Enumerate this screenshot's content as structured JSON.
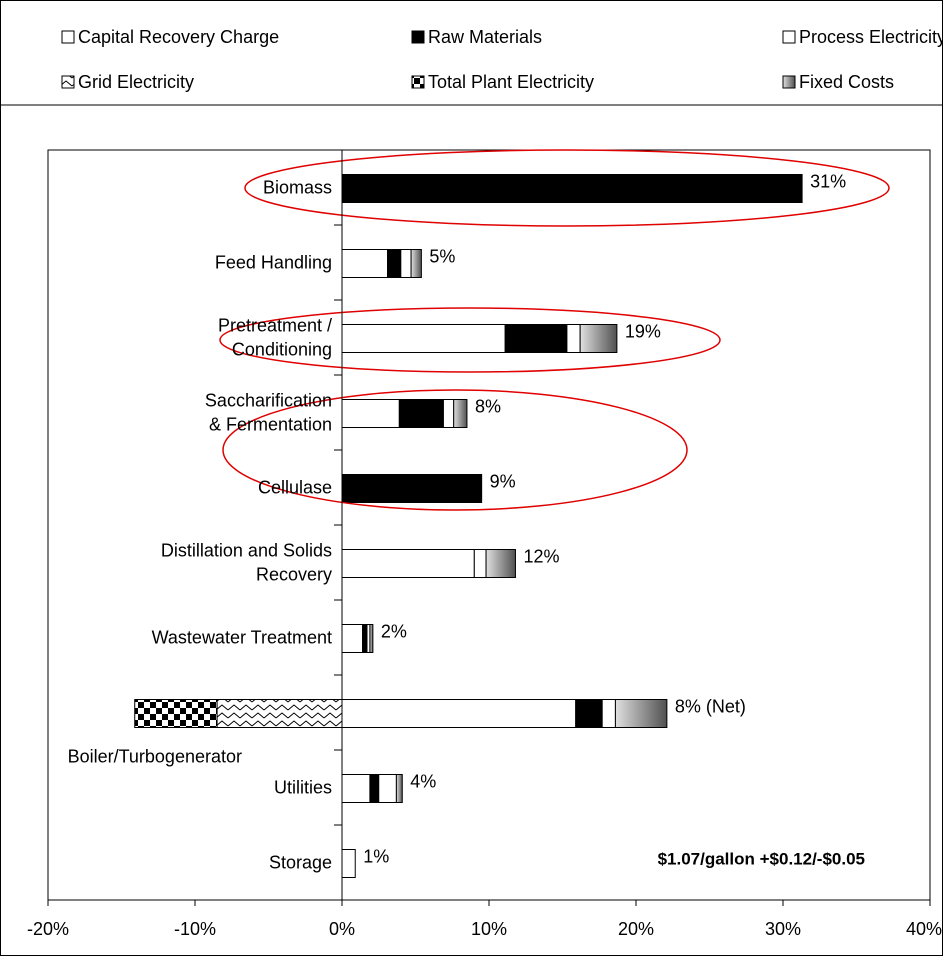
{
  "chart_data": {
    "type": "stacked-hbar",
    "categories": [
      [
        "Biomass"
      ],
      [
        "Feed Handling"
      ],
      [
        "Pretreatment /",
        "Conditioning"
      ],
      [
        "Saccharification",
        "& Fermentation"
      ],
      [
        "Cellulase"
      ],
      [
        "Distillation and Solids",
        "Recovery"
      ],
      [
        "Wastewater Treatment"
      ],
      [
        "Boiler/Turbogenerator"
      ],
      [
        "Utilities"
      ],
      [
        "Storage"
      ]
    ],
    "series": [
      {
        "name": "Capital Recovery Charge",
        "color": "#ffffff",
        "values": [
          0,
          3.1,
          11.1,
          3.9,
          0,
          9.0,
          1.4,
          15.9,
          1.9,
          0.9
        ]
      },
      {
        "name": "Raw Materials",
        "color": "#000000",
        "values": [
          31.3,
          0.9,
          4.2,
          3.0,
          9.5,
          0,
          0.3,
          1.8,
          0.6,
          0
        ]
      },
      {
        "name": "Process Electricity",
        "color": "#ffffff",
        "values": [
          0,
          0.7,
          0.9,
          0.7,
          0,
          0.8,
          0.2,
          0.9,
          1.2,
          0
        ]
      },
      {
        "name": "Grid Electricity",
        "color": "#ffffff",
        "pattern": "zigzag",
        "values": [
          0,
          0,
          0,
          0,
          0,
          0,
          0,
          -8.5,
          0,
          0
        ]
      },
      {
        "name": "Total Plant Electricity",
        "color": "#000000",
        "pattern": "checker",
        "values": [
          0,
          0,
          0,
          0,
          0,
          0,
          0,
          -5.6,
          0,
          0
        ]
      },
      {
        "name": "Fixed Costs",
        "color": "#808080",
        "pattern": "gradient",
        "values": [
          0,
          0.7,
          2.5,
          0.9,
          0,
          2.0,
          0.2,
          3.5,
          0.4,
          0
        ]
      }
    ],
    "totals": [
      31,
      5,
      19,
      8,
      9,
      12,
      2,
      8,
      4,
      1
    ],
    "value_labels": [
      "31%",
      "5%",
      "19%",
      "8%",
      "9%",
      "12%",
      "2%",
      "8% (Net)",
      "4%",
      "1%"
    ],
    "annotation": "$1.07/gallon +$0.12/-$0.05",
    "xlim": [
      -20,
      40
    ],
    "xticks": [
      {
        "value": -20,
        "label": "-20%"
      },
      {
        "value": -10,
        "label": "-10%"
      },
      {
        "value": 0,
        "label": "0%"
      },
      {
        "value": 10,
        "label": "10%"
      },
      {
        "value": 20,
        "label": "20%"
      },
      {
        "value": 30,
        "label": "30%"
      },
      {
        "value": 40,
        "label": "40%"
      }
    ],
    "legend": "top"
  }
}
